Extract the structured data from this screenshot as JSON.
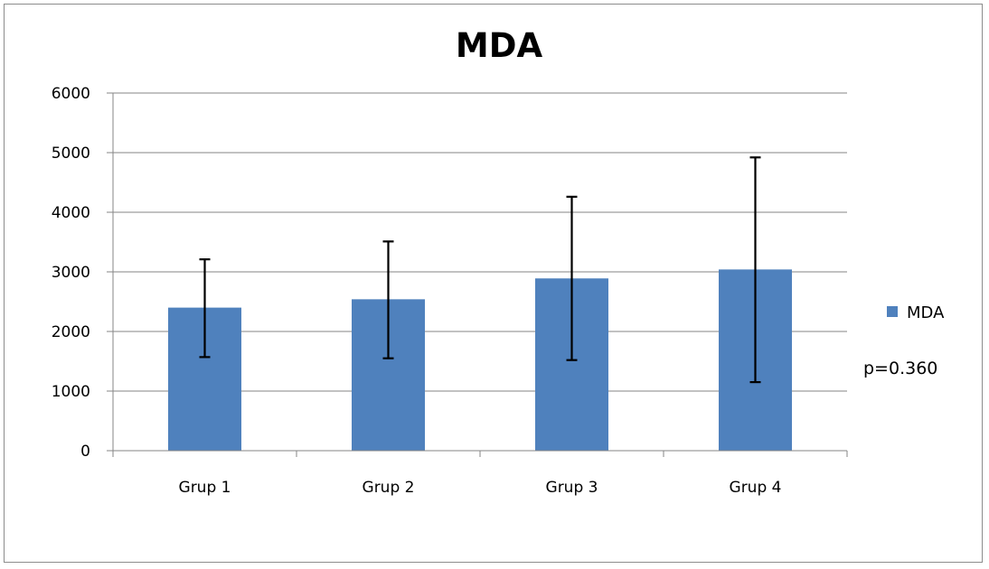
{
  "chart_data": {
    "type": "bar",
    "title": "MDA",
    "categories": [
      "Grup 1",
      "Grup 2",
      "Grup 3",
      "Grup 4"
    ],
    "series": [
      {
        "name": "MDA",
        "values": [
          2400,
          2540,
          2890,
          3040
        ],
        "error_bars": [
          {
            "low": 1570,
            "high": 3210
          },
          {
            "low": 1550,
            "high": 3510
          },
          {
            "low": 1520,
            "high": 4260
          },
          {
            "low": 1150,
            "high": 4920
          }
        ]
      }
    ],
    "ylim": [
      0,
      6000
    ],
    "yticks": [
      "0",
      "1000",
      "2000",
      "3000",
      "4000",
      "5000",
      "6000"
    ],
    "grid": true,
    "legend": {
      "position": "right",
      "entries": [
        "MDA"
      ]
    },
    "annotation": "p=0.360",
    "colors": {
      "bar": "#4f81bd",
      "grid": "#858585",
      "error_bar": "#000000"
    }
  }
}
